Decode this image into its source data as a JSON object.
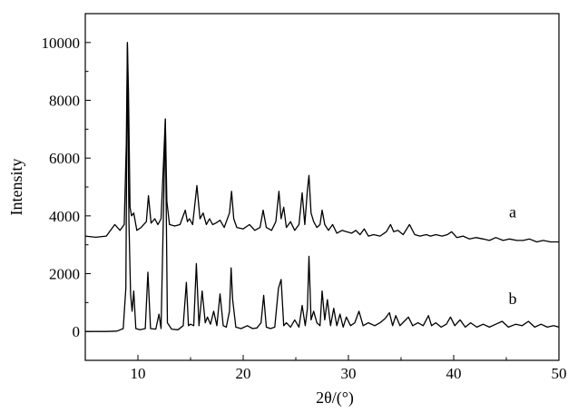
{
  "chart_data": {
    "type": "line",
    "title": "",
    "xlabel": "2θ/(°)",
    "ylabel": "Intensity",
    "xlim": [
      5,
      50
    ],
    "ylim": [
      -1000,
      11000
    ],
    "grid": false,
    "x_ticks": [
      10,
      20,
      30,
      40,
      50
    ],
    "y_ticks": [
      0,
      2000,
      4000,
      6000,
      8000,
      10000
    ],
    "series": [
      {
        "name": "a",
        "baseline": 3300,
        "baseline_end": 3050,
        "label_at": [
          45.6,
          3950
        ],
        "x": [
          5.0,
          6.0,
          7.0,
          7.8,
          8.3,
          8.7,
          8.9,
          9.0,
          9.1,
          9.25,
          9.4,
          9.6,
          9.9,
          10.3,
          10.8,
          11.0,
          11.25,
          11.6,
          11.9,
          12.2,
          12.45,
          12.6,
          12.75,
          13.0,
          13.5,
          14.0,
          14.5,
          14.7,
          14.9,
          15.2,
          15.6,
          15.9,
          16.2,
          16.5,
          16.8,
          17.1,
          17.4,
          17.8,
          18.2,
          18.7,
          18.9,
          19.1,
          19.4,
          20.0,
          20.6,
          21.1,
          21.6,
          21.9,
          22.2,
          22.7,
          23.1,
          23.4,
          23.6,
          23.85,
          24.1,
          24.5,
          24.9,
          25.3,
          25.6,
          25.85,
          26.1,
          26.25,
          26.45,
          26.7,
          27.0,
          27.3,
          27.5,
          27.75,
          28.1,
          28.5,
          28.9,
          29.4,
          29.8,
          30.3,
          30.7,
          31.1,
          31.5,
          31.9,
          32.4,
          33.0,
          33.6,
          34.0,
          34.3,
          34.7,
          35.2,
          35.8,
          36.3,
          36.8,
          37.4,
          37.8,
          38.3,
          38.9,
          39.4,
          39.8,
          40.3,
          40.9,
          41.5,
          42.1,
          42.8,
          43.4,
          44.0,
          44.7,
          45.3,
          46.0,
          46.6,
          47.2,
          47.9,
          48.5,
          49.2,
          50.0
        ],
        "y": [
          3300,
          3260,
          3300,
          3700,
          3500,
          3700,
          6500,
          9950,
          8300,
          4300,
          4000,
          4100,
          3500,
          3600,
          3800,
          4700,
          3750,
          3900,
          3700,
          3900,
          6000,
          7350,
          4500,
          3700,
          3650,
          3700,
          4200,
          3800,
          3900,
          3700,
          5050,
          3900,
          4100,
          3700,
          3900,
          3700,
          3750,
          3850,
          3600,
          4100,
          4850,
          3900,
          3600,
          3550,
          3700,
          3500,
          3600,
          4200,
          3600,
          3500,
          3800,
          4850,
          3900,
          4300,
          3600,
          3800,
          3500,
          3700,
          4800,
          3700,
          4900,
          5400,
          4100,
          3800,
          3600,
          3700,
          4200,
          3700,
          3500,
          3700,
          3400,
          3500,
          3450,
          3400,
          3500,
          3350,
          3550,
          3300,
          3350,
          3300,
          3450,
          3700,
          3450,
          3500,
          3350,
          3700,
          3350,
          3300,
          3350,
          3300,
          3350,
          3300,
          3350,
          3450,
          3250,
          3300,
          3200,
          3250,
          3200,
          3150,
          3250,
          3150,
          3200,
          3150,
          3150,
          3200,
          3100,
          3150,
          3100,
          3100
        ]
      },
      {
        "name": "b",
        "baseline": 0,
        "baseline_end": 0,
        "label_at": [
          45.6,
          950
        ],
        "x": [
          5.0,
          7.0,
          8.0,
          8.6,
          8.85,
          9.0,
          9.15,
          9.3,
          9.45,
          9.6,
          9.8,
          10.2,
          10.7,
          10.95,
          11.2,
          11.7,
          12.0,
          12.2,
          12.45,
          12.6,
          12.8,
          13.2,
          13.8,
          14.3,
          14.6,
          14.8,
          15.0,
          15.3,
          15.55,
          15.8,
          16.1,
          16.4,
          16.6,
          16.9,
          17.2,
          17.5,
          17.8,
          18.1,
          18.4,
          18.7,
          18.85,
          19.0,
          19.3,
          19.8,
          20.4,
          20.9,
          21.3,
          21.7,
          21.95,
          22.2,
          22.6,
          23.0,
          23.35,
          23.6,
          23.85,
          24.1,
          24.5,
          24.9,
          25.3,
          25.6,
          25.9,
          26.1,
          26.25,
          26.45,
          26.7,
          27.0,
          27.3,
          27.5,
          27.75,
          28.0,
          28.3,
          28.6,
          28.9,
          29.2,
          29.5,
          29.8,
          30.2,
          30.6,
          31.0,
          31.4,
          31.9,
          32.5,
          33.0,
          33.5,
          33.9,
          34.2,
          34.5,
          34.9,
          35.3,
          35.7,
          36.1,
          36.6,
          37.1,
          37.6,
          37.9,
          38.3,
          38.8,
          39.3,
          39.7,
          40.1,
          40.6,
          41.1,
          41.6,
          42.2,
          42.8,
          43.4,
          44.0,
          44.6,
          45.2,
          45.9,
          46.5,
          47.1,
          47.7,
          48.3,
          48.9,
          49.5,
          50.0
        ],
        "y": [
          0,
          0,
          10,
          100,
          1500,
          10000,
          3800,
          1300,
          700,
          1400,
          100,
          60,
          100,
          2050,
          100,
          80,
          600,
          100,
          4500,
          7350,
          300,
          80,
          60,
          200,
          1700,
          200,
          250,
          200,
          2350,
          200,
          1400,
          300,
          500,
          250,
          700,
          200,
          1300,
          200,
          150,
          700,
          2200,
          1100,
          150,
          100,
          200,
          100,
          120,
          300,
          1250,
          150,
          100,
          150,
          1500,
          1800,
          200,
          300,
          150,
          400,
          150,
          900,
          200,
          800,
          2600,
          400,
          700,
          300,
          200,
          1400,
          400,
          1100,
          200,
          800,
          200,
          600,
          150,
          500,
          200,
          300,
          700,
          200,
          300,
          200,
          300,
          450,
          650,
          200,
          550,
          200,
          350,
          500,
          200,
          300,
          200,
          550,
          200,
          300,
          150,
          250,
          500,
          200,
          400,
          150,
          300,
          150,
          250,
          150,
          250,
          350,
          150,
          250,
          200,
          350,
          150,
          250,
          150,
          200,
          150
        ]
      }
    ]
  }
}
